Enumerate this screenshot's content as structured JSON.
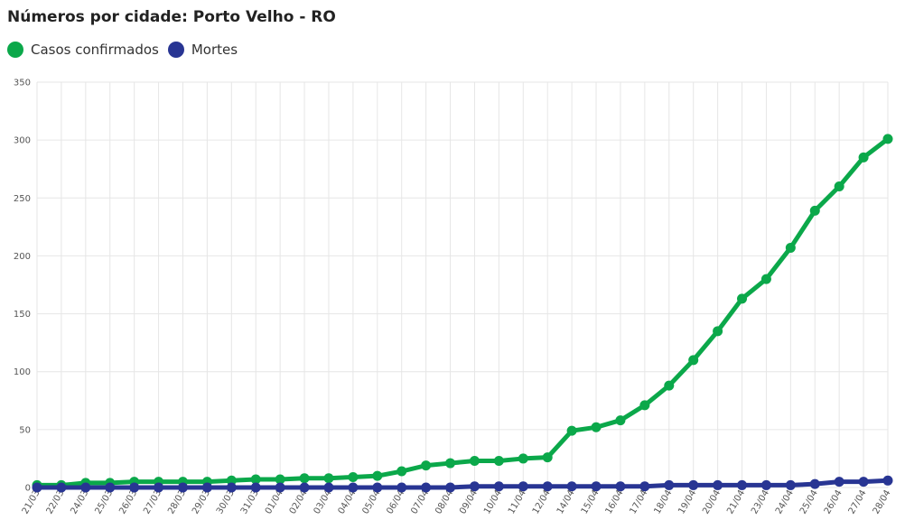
{
  "chart_data": {
    "type": "line",
    "title": "Números por cidade: Porto Velho - RO",
    "xlabel": "",
    "ylabel": "",
    "ylim": [
      0,
      350
    ],
    "yticks": [
      0,
      50,
      100,
      150,
      200,
      250,
      300,
      350
    ],
    "grid": true,
    "legend_position": "top-left",
    "categories": [
      "21/03",
      "22/03",
      "24/03",
      "25/03",
      "26/03",
      "27/03",
      "28/03",
      "29/03",
      "30/03",
      "31/03",
      "01/04",
      "02/04",
      "03/04",
      "04/04",
      "05/04",
      "06/04",
      "07/04",
      "08/04",
      "09/04",
      "10/04",
      "11/04",
      "12/04",
      "14/04",
      "15/04",
      "16/04",
      "17/04",
      "18/04",
      "19/04",
      "20/04",
      "21/04",
      "23/04",
      "24/04",
      "25/04",
      "26/04",
      "27/04",
      "28/04"
    ],
    "series": [
      {
        "name": "Casos confirmados",
        "color": "#0ba84a",
        "values": [
          2,
          2,
          4,
          4,
          5,
          5,
          5,
          5,
          6,
          7,
          7,
          8,
          8,
          9,
          10,
          14,
          19,
          21,
          23,
          23,
          25,
          26,
          49,
          52,
          58,
          71,
          88,
          110,
          135,
          163,
          180,
          207,
          239,
          260,
          285,
          301
        ]
      },
      {
        "name": "Mortes",
        "color": "#283593",
        "values": [
          0,
          0,
          0,
          0,
          0,
          0,
          0,
          0,
          0,
          0,
          0,
          0,
          0,
          0,
          0,
          0,
          0,
          0,
          1,
          1,
          1,
          1,
          1,
          1,
          1,
          1,
          2,
          2,
          2,
          2,
          2,
          2,
          3,
          5,
          5,
          6
        ]
      }
    ]
  }
}
